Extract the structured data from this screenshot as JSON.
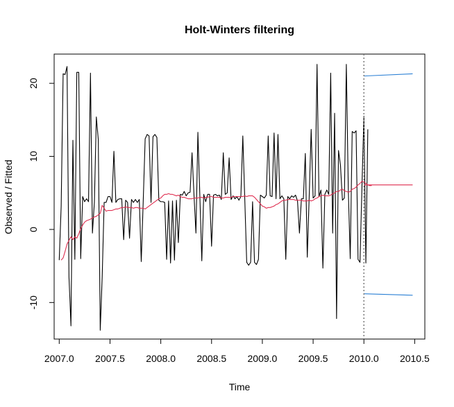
{
  "chart_data": {
    "type": "line",
    "title": "Holt-Winters filtering",
    "xlabel": "Time",
    "ylabel": "Observed / Fitted",
    "xlim": [
      2006.95,
      2010.6
    ],
    "ylim": [
      -15,
      24
    ],
    "x_ticks": [
      "2007.0",
      "2007.5",
      "2008.0",
      "2008.5",
      "2009.0",
      "2009.5",
      "2010.0",
      "2010.5"
    ],
    "y_ticks": [
      "-10",
      "0",
      "10",
      "20"
    ],
    "forecast_start": 2010.0,
    "grid": false,
    "legend": "none",
    "series": [
      {
        "color": "#000000",
        "x0": 2007.0,
        "step": 0.0192308,
        "values": [
          -4.2,
          3.2,
          21.3,
          21.2,
          22.3,
          -6.5,
          -13.2,
          12.2,
          -4.1,
          21.5,
          21.5,
          -4.0,
          4.5,
          3.8,
          4.2,
          3.8,
          21.4,
          -0.5,
          3.7,
          15.4,
          12.3,
          -13.8,
          -6.5,
          3.7,
          3.7,
          4.5,
          4.5,
          3.7,
          10.7,
          3.7,
          4.1,
          4.2,
          4.2,
          -1.4,
          4.0,
          3.7,
          -1.2,
          4.1,
          3.7,
          4.1,
          3.7,
          4.1,
          -4.4,
          3.8,
          12.4,
          13.0,
          12.8,
          3.7,
          12.7,
          13.0,
          12.6,
          4.0,
          3.8,
          3.8,
          3.7,
          -4.1,
          3.9,
          -4.6,
          3.9,
          -4.2,
          4.0,
          -1.8,
          4.8,
          4.7,
          5.2,
          4.6,
          5.0,
          5.1,
          10.5,
          4.7,
          -0.5,
          13.3,
          4.6,
          -4.3,
          4.8,
          3.8,
          4.8,
          4.8,
          -2.3,
          4.7,
          4.8,
          4.6,
          4.7,
          4.1,
          10.5,
          4.8,
          5.0,
          9.8,
          4.1,
          4.6,
          4.2,
          4.5,
          4.0,
          4.5,
          12.8,
          4.2,
          -4.5,
          -4.9,
          -4.5,
          3.8,
          -4.5,
          -4.8,
          -4.1,
          4.7,
          4.5,
          4.3,
          4.7,
          12.8,
          4.6,
          4.5,
          13.2,
          4.2,
          13.0,
          4.2,
          4.6,
          4.2,
          -4.1,
          4.5,
          4.2,
          4.6,
          4.4,
          4.7,
          3.9,
          -0.5,
          4.2,
          4.2,
          10.4,
          -3.8,
          4.6,
          13.7,
          4.3,
          4.6,
          22.6,
          4.5,
          5.4,
          -5.3,
          4.8,
          5.4,
          4.8,
          21.4,
          -0.5,
          15.9,
          -12.2,
          10.8,
          8.8,
          4.0,
          4.3,
          22.6,
          5.6,
          -4.0,
          13.4,
          13.2,
          13.5,
          -4.1,
          -4.5,
          5.9,
          15.5,
          -4.6,
          13.7
        ]
      },
      {
        "color": "#DF2E50",
        "x0": 2007.0192308,
        "step": 0.0192308,
        "values": [
          -4.2,
          -3.9,
          -3.0,
          -2.0,
          -1.5,
          -1.0,
          -1.4,
          -1.0,
          -1.2,
          -0.6,
          0.1,
          0.6,
          1.0,
          1.2,
          1.3,
          1.4,
          1.6,
          1.7,
          1.8,
          2.0,
          2.2,
          3.3,
          2.9,
          2.5,
          2.6,
          2.6,
          2.6,
          2.7,
          2.8,
          2.8,
          2.9,
          3.0,
          3.0,
          3.1,
          3.0,
          3.0,
          3.0,
          2.9,
          3.0,
          3.0,
          2.9,
          2.9,
          2.9,
          2.8,
          3.0,
          3.2,
          3.4,
          3.6,
          3.8,
          4.0,
          4.2,
          4.3,
          4.6,
          4.8,
          4.8,
          4.9,
          4.8,
          4.8,
          4.7,
          4.6,
          4.7,
          4.5,
          4.4,
          4.4,
          4.3,
          4.2,
          4.2,
          4.2,
          4.3,
          4.3,
          4.3,
          4.4,
          4.4,
          4.3,
          4.4,
          4.4,
          4.5,
          4.5,
          4.4,
          4.4,
          4.4,
          4.4,
          4.3,
          4.3,
          4.4,
          4.4,
          4.4,
          4.4,
          4.5,
          4.5,
          4.5,
          4.5,
          4.5,
          4.5,
          4.6,
          4.5,
          4.6,
          4.6,
          4.6,
          4.4,
          4.1,
          3.8,
          3.5,
          3.2,
          3.1,
          2.9,
          3.0,
          3.0,
          3.1,
          3.2,
          3.4,
          3.5,
          3.7,
          3.9,
          4.0,
          4.0,
          4.1,
          4.1,
          4.1,
          4.1,
          4.0,
          4.0,
          4.0,
          4.0,
          3.9,
          3.9,
          3.9,
          4.0,
          3.9,
          4.0,
          4.2,
          4.3,
          4.5,
          4.6,
          4.7,
          4.6,
          4.6,
          4.6,
          4.7,
          4.9,
          5.0,
          5.2,
          5.2,
          5.4,
          5.5,
          5.3,
          5.2,
          5.1,
          5.2,
          5.5,
          5.6,
          5.8,
          6.1,
          6.3,
          6.6,
          6.5,
          6.3,
          6.1,
          6.0,
          6.0
        ]
      },
      {
        "color": "#DF2E50",
        "x": [
          2010.0,
          2010.48
        ],
        "values": [
          6.1,
          6.1
        ]
      },
      {
        "color": "#2A7FD4",
        "x": [
          2010.0,
          2010.48
        ],
        "values": [
          21.0,
          21.3
        ]
      },
      {
        "color": "#2A7FD4",
        "x": [
          2010.0,
          2010.48
        ],
        "values": [
          -8.8,
          -9.0
        ]
      }
    ]
  }
}
